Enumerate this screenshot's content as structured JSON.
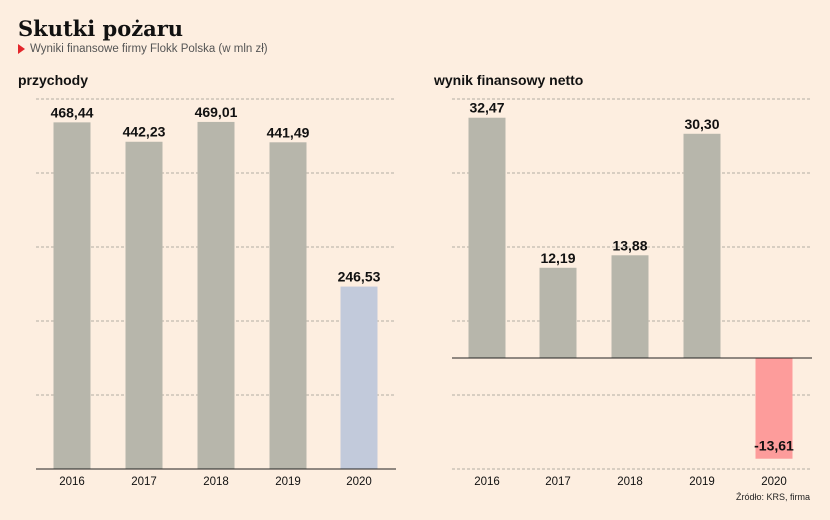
{
  "header": {
    "title": "Skutki pożaru",
    "subtitle": "Wyniki finansowe firmy Flokk Polska (w mln zł)"
  },
  "source": "Źródło: KRS, firma",
  "colors": {
    "background": "#fdeee0",
    "bar_default": "#b7b6ab",
    "bar_highlight": "#c2cadb",
    "bar_negative": "#fd9c9b",
    "accent": "#e3262b"
  },
  "chart_data": [
    {
      "type": "bar",
      "title": "przychody",
      "categories": [
        "2016",
        "2017",
        "2018",
        "2019",
        "2020"
      ],
      "values": [
        468.44,
        442.23,
        469.01,
        441.49,
        246.53
      ],
      "labels": [
        "468,44",
        "442,23",
        "469,01",
        "441,49",
        "246,53"
      ],
      "ylim": [
        0,
        500
      ],
      "grid": true,
      "highlight_index": 4
    },
    {
      "type": "bar",
      "title": "wynik finansowy netto",
      "categories": [
        "2016",
        "2017",
        "2018",
        "2019",
        "2020"
      ],
      "values": [
        32.47,
        12.19,
        13.88,
        30.3,
        -13.61
      ],
      "labels": [
        "32,47",
        "12,19",
        "13,88",
        "30,30",
        "-13,61"
      ],
      "ylim": [
        -15,
        35
      ],
      "grid": true
    }
  ]
}
